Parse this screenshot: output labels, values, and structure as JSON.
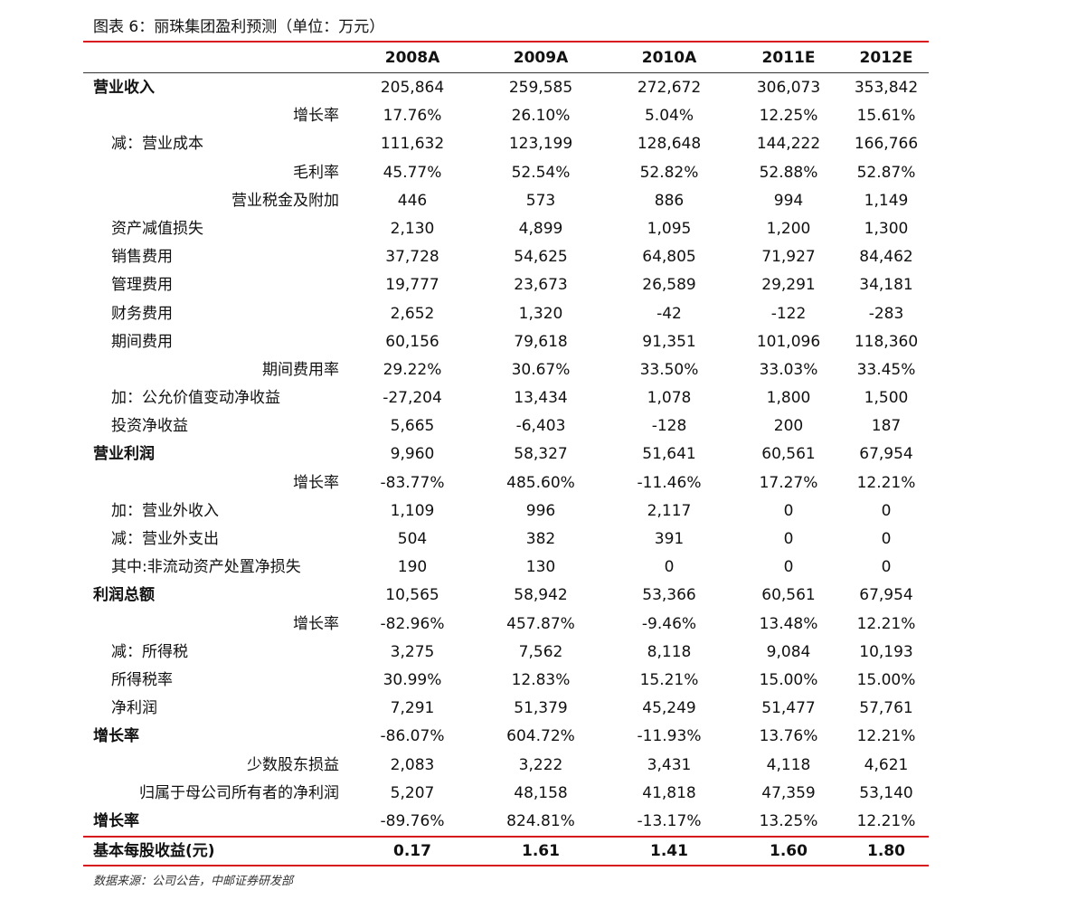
{
  "title": "图表 6：丽珠集团盈利预测（单位：万元）",
  "table": {
    "columns": [
      "2008A",
      "2009A",
      "2010A",
      "2011E",
      "2012E"
    ],
    "rows": [
      {
        "label": "营业收入",
        "values": [
          "205,864",
          "259,585",
          "272,672",
          "306,073",
          "353,842"
        ]
      },
      {
        "label": "增长率",
        "values": [
          "17.76%",
          "26.10%",
          "5.04%",
          "12.25%",
          "15.61%"
        ]
      },
      {
        "label": "减：营业成本",
        "values": [
          "111,632",
          "123,199",
          "128,648",
          "144,222",
          "166,766"
        ]
      },
      {
        "label": "毛利率",
        "values": [
          "45.77%",
          "52.54%",
          "52.82%",
          "52.88%",
          "52.87%"
        ]
      },
      {
        "label": "营业税金及附加",
        "values": [
          "446",
          "573",
          "886",
          "994",
          "1,149"
        ]
      },
      {
        "label": "资产减值损失",
        "values": [
          "2,130",
          "4,899",
          "1,095",
          "1,200",
          "1,300"
        ]
      },
      {
        "label": "销售费用",
        "values": [
          "37,728",
          "54,625",
          "64,805",
          "71,927",
          "84,462"
        ]
      },
      {
        "label": "管理费用",
        "values": [
          "19,777",
          "23,673",
          "26,589",
          "29,291",
          "34,181"
        ]
      },
      {
        "label": "财务费用",
        "values": [
          "2,652",
          "1,320",
          "-42",
          "-122",
          "-283"
        ]
      },
      {
        "label": "期间费用",
        "values": [
          "60,156",
          "79,618",
          "91,351",
          "101,096",
          "118,360"
        ]
      },
      {
        "label": "期间费用率",
        "values": [
          "29.22%",
          "30.67%",
          "33.50%",
          "33.03%",
          "33.45%"
        ]
      },
      {
        "label": "加：公允价值变动净收益",
        "values": [
          "-27,204",
          "13,434",
          "1,078",
          "1,800",
          "1,500"
        ]
      },
      {
        "label": "投资净收益",
        "values": [
          "5,665",
          "-6,403",
          "-128",
          "200",
          "187"
        ]
      },
      {
        "label": "营业利润",
        "values": [
          "9,960",
          "58,327",
          "51,641",
          "60,561",
          "67,954"
        ]
      },
      {
        "label": "增长率",
        "values": [
          "-83.77%",
          "485.60%",
          "-11.46%",
          "17.27%",
          "12.21%"
        ]
      },
      {
        "label": "加：营业外收入",
        "values": [
          "1,109",
          "996",
          "2,117",
          "0",
          "0"
        ]
      },
      {
        "label": "减：营业外支出",
        "values": [
          "504",
          "382",
          "391",
          "0",
          "0"
        ]
      },
      {
        "label": "其中:非流动资产处置净损失",
        "values": [
          "190",
          "130",
          "0",
          "0",
          "0"
        ]
      },
      {
        "label": "利润总额",
        "values": [
          "10,565",
          "58,942",
          "53,366",
          "60,561",
          "67,954"
        ]
      },
      {
        "label": "增长率",
        "values": [
          "-82.96%",
          "457.87%",
          "-9.46%",
          "13.48%",
          "12.21%"
        ]
      },
      {
        "label": "减：所得税",
        "values": [
          "3,275",
          "7,562",
          "8,118",
          "9,084",
          "10,193"
        ]
      },
      {
        "label": "所得税率",
        "values": [
          "30.99%",
          "12.83%",
          "15.21%",
          "15.00%",
          "15.00%"
        ]
      },
      {
        "label": "净利润",
        "values": [
          "7,291",
          "51,379",
          "45,249",
          "51,477",
          "57,761"
        ]
      },
      {
        "label": "增长率",
        "values": [
          "-86.07%",
          "604.72%",
          "-11.93%",
          "13.76%",
          "12.21%"
        ]
      },
      {
        "label": "少数股东损益",
        "values": [
          "2,083",
          "3,222",
          "3,431",
          "4,118",
          "4,621"
        ]
      },
      {
        "label": "归属于母公司所有者的净利润",
        "values": [
          "5,207",
          "48,158",
          "41,818",
          "47,359",
          "53,140"
        ]
      },
      {
        "label": "增长率",
        "values": [
          "-89.76%",
          "824.81%",
          "-13.17%",
          "13.25%",
          "12.21%"
        ]
      }
    ],
    "footer_row": {
      "label": "基本每股收益(元)",
      "values": [
        "0.17",
        "1.61",
        "1.41",
        "1.60",
        "1.80"
      ]
    }
  },
  "source": "数据来源：公司公告，中邮证券研发部"
}
